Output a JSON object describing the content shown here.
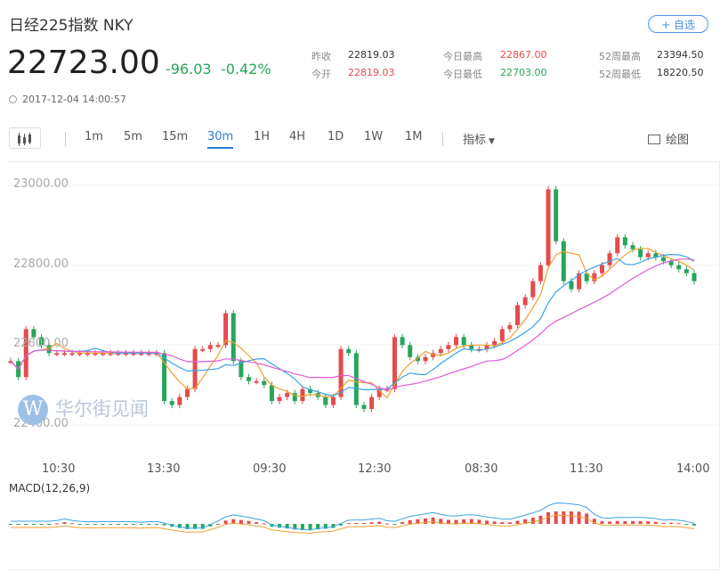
{
  "header": {
    "title": "日经225指数 NKY",
    "add_button": "+ 自选",
    "price": "22723.00",
    "change": "-96.03",
    "change_pct": "-0.42%",
    "timestamp": "2017-12-04 14:00:57"
  },
  "stats": {
    "prev_close_label": "昨收",
    "prev_close": "22819.03",
    "open_label": "今开",
    "open": "22819.03",
    "high_label": "今日最高",
    "high": "22867.00",
    "low_label": "今日最低",
    "low": "22703.00",
    "wk52_high_label": "52周最高",
    "wk52_high": "23394.50",
    "wk52_low_label": "52周最低",
    "wk52_low": "18220.50"
  },
  "toolbar": {
    "periods": [
      "1m",
      "5m",
      "15m",
      "30m",
      "1H",
      "4H",
      "1D",
      "1W",
      "1M"
    ],
    "active": "30m",
    "indicator_label": "指标",
    "draw_label": "绘图"
  },
  "chart": {
    "y_labels": [
      "23000.00",
      "22800.00",
      "22600.00",
      "22400.00"
    ],
    "x_labels": [
      "10:30",
      "13:30",
      "09:30",
      "12:30",
      "08:30",
      "11:30",
      "14:00"
    ],
    "watermark": "华尔街见闻",
    "watermark_logo": "W",
    "macd_label": "MACD(12,26,9)",
    "colors": {
      "up": "#e44b4b",
      "down": "#26a65b",
      "ma_pink": "#e05ad8",
      "ma_blue": "#3aa3e3",
      "ma_orange": "#f0a030"
    }
  }
}
